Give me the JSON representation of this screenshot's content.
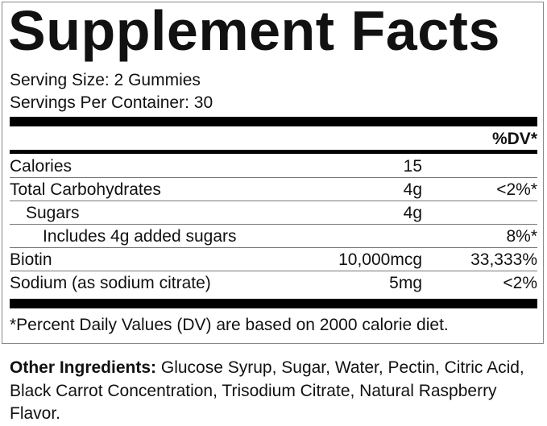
{
  "title": "Supplement Facts",
  "serving_size": "Serving Size: 2 Gummies",
  "servings_per_container": "Servings Per Container: 30",
  "dv_header": "%DV*",
  "rows": [
    {
      "name": "Calories",
      "amount": "15",
      "dv": ""
    },
    {
      "name": "Total Carbohydrates",
      "amount": "4g",
      "dv": "<2%*"
    },
    {
      "name": "Sugars",
      "amount": "4g",
      "dv": ""
    },
    {
      "name": "Includes 4g added sugars",
      "amount": "",
      "dv": "8%*"
    },
    {
      "name": "Biotin",
      "amount": "10,000mcg",
      "dv": "33,333%"
    },
    {
      "name": "Sodium (as sodium citrate)",
      "amount": "5mg",
      "dv": "<2%"
    }
  ],
  "footnote": "*Percent Daily Values (DV) are based on 2000 calorie diet.",
  "other_ingredients": {
    "label": "Other Ingredients:",
    "text": " Glucose Syrup, Sugar, Water, Pectin, Citric Acid, Black Carrot Concentration, Trisodium Citrate, Natural Raspberry Flavor."
  }
}
